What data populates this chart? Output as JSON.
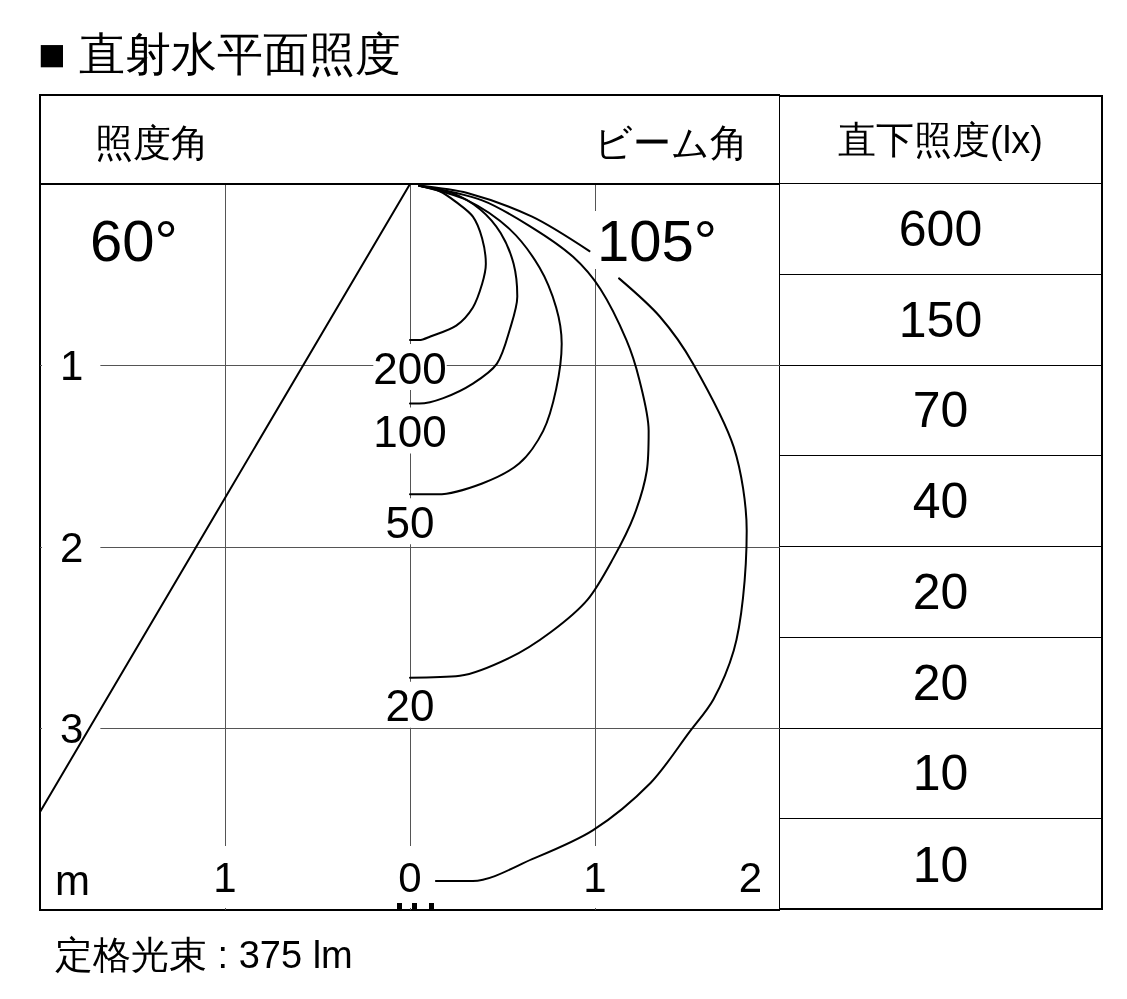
{
  "chart_data": [
    {
      "type": "line",
      "title": "■ 直射水平面照度",
      "xlabel": "m",
      "xlim": [
        -2,
        2
      ],
      "ylim": [
        4,
        0
      ],
      "xticks": [
        {
          "value": -1,
          "label": "1"
        },
        0,
        1,
        2
      ],
      "yticks": [
        1,
        2,
        3
      ],
      "grid": true,
      "series": [
        {
          "color": "#000000",
          "x": [
            0,
            -2
          ],
          "values": [
            0,
            3.46
          ]
        },
        {
          "name": "200",
          "color": "#000000",
          "x": [
            0.05,
            0.16,
            0.25,
            0.34,
            0.39,
            0.41,
            0.39,
            0.34,
            0.25,
            0.11,
            0.05,
            0
          ],
          "values": [
            0.01,
            0.04,
            0.1,
            0.18,
            0.3,
            0.44,
            0.55,
            0.68,
            0.78,
            0.84,
            0.86,
            0.86
          ]
        },
        {
          "name": "100",
          "color": "#000000",
          "x": [
            0.05,
            0.23,
            0.38,
            0.49,
            0.56,
            0.58,
            0.54,
            0.47,
            0.34,
            0.18,
            0.05,
            0
          ],
          "values": [
            0.01,
            0.05,
            0.14,
            0.27,
            0.44,
            0.62,
            0.8,
            0.99,
            1.1,
            1.18,
            1.21,
            1.21
          ]
        },
        {
          "name": "50",
          "color": "#000000",
          "x": [
            0.05,
            0.31,
            0.54,
            0.7,
            0.79,
            0.82,
            0.79,
            0.72,
            0.59,
            0.39,
            0.15,
            0
          ],
          "values": [
            0.01,
            0.09,
            0.25,
            0.46,
            0.68,
            0.88,
            1.13,
            1.36,
            1.54,
            1.65,
            1.71,
            1.71
          ]
        },
        {
          "name": "20",
          "color": "#000000",
          "x": [
            0.05,
            0.39,
            0.66,
            0.88,
            1.03,
            1.17,
            1.24,
            1.29,
            1.28,
            1.21,
            1.1,
            0.96,
            0.76,
            0.54,
            0.27,
            0
          ],
          "values": [
            0.01,
            0.09,
            0.24,
            0.4,
            0.58,
            0.86,
            1.08,
            1.36,
            1.58,
            1.83,
            2.06,
            2.29,
            2.47,
            2.61,
            2.71,
            2.72
          ]
        },
        {
          "color": "#000000",
          "x": [
            0.05,
            0.31,
            0.66,
            0.97,
            1.04,
            1.13,
            1.35,
            1.53,
            1.75,
            1.82,
            1.8,
            1.75,
            1.64,
            1.51,
            1.3,
            0.99,
            0.66,
            0.34,
            0.14
          ],
          "values": [
            0.01,
            0.05,
            0.18,
            0.37,
            null,
            0.52,
            0.73,
            0.99,
            1.45,
            1.91,
            2.28,
            2.57,
            2.84,
            3.02,
            3.3,
            3.56,
            3.72,
            3.84,
            3.84
          ]
        }
      ],
      "annotations": [
        "照度角",
        "60°",
        "ビーム角",
        "105°",
        "定格光束 : 375 lm"
      ]
    },
    {
      "type": "other",
      "title": "直下照度(lx)",
      "values": [
        600,
        150,
        70,
        40,
        20,
        20,
        10,
        10
      ],
      "data_labels": true
    }
  ]
}
